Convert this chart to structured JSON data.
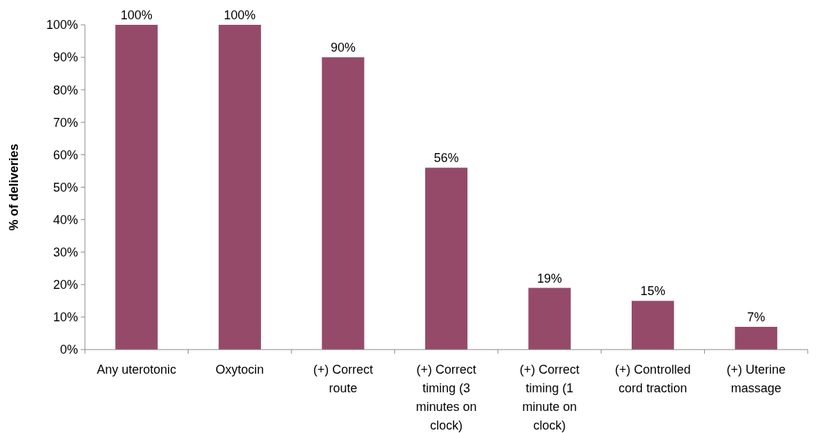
{
  "chart_data": {
    "type": "bar",
    "ylabel": "% of deliveries",
    "categories": [
      "Any uterotonic",
      "Oxytocin",
      "(+) Correct route",
      "(+) Correct timing (3 minutes on clock)",
      "(+) Correct timing (1 minute on clock)",
      "(+) Controlled cord traction",
      "(+) Uterine massage"
    ],
    "values": [
      100,
      100,
      90,
      56,
      19,
      15,
      7
    ],
    "value_labels": [
      "100%",
      "100%",
      "90%",
      "56%",
      "19%",
      "15%",
      "7%"
    ],
    "color": "#964a6a",
    "grid": false,
    "ylim": [
      0,
      100
    ],
    "yticks": [
      {
        "value": 0,
        "label": "0%"
      },
      {
        "value": 10,
        "label": "10%"
      },
      {
        "value": 20,
        "label": "20%"
      },
      {
        "value": 30,
        "label": "30%"
      },
      {
        "value": 40,
        "label": "40%"
      },
      {
        "value": 50,
        "label": "50%"
      },
      {
        "value": 60,
        "label": "60%"
      },
      {
        "value": 70,
        "label": "70%"
      },
      {
        "value": 80,
        "label": "80%"
      },
      {
        "value": 90,
        "label": "90%"
      },
      {
        "value": 100,
        "label": "100%"
      }
    ]
  }
}
